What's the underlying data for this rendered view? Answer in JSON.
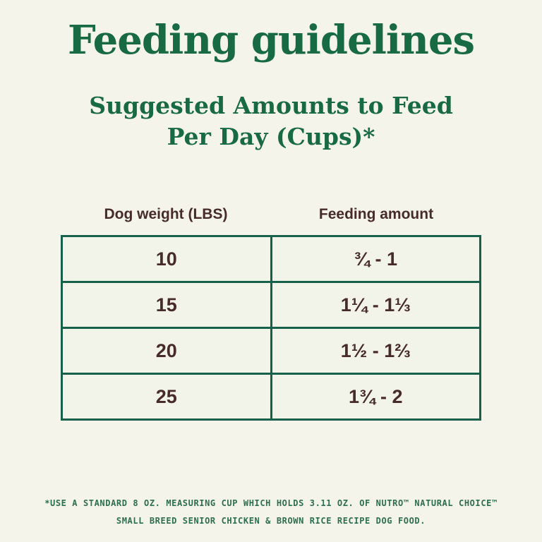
{
  "page": {
    "title": "Feeding guidelines",
    "subtitle_line1": "Suggested Amounts to Feed",
    "subtitle_line2": "Per Day (Cups)*"
  },
  "table": {
    "headers": [
      "Dog weight (LBS)",
      "Feeding amount"
    ],
    "rows": [
      {
        "weight": "10",
        "amount": "¾ - 1"
      },
      {
        "weight": "15",
        "amount": "1¼ - 1⅓"
      },
      {
        "weight": "20",
        "amount": "1½ - 1⅔"
      },
      {
        "weight": "25",
        "amount": "1¾ - 2"
      }
    ]
  },
  "footnote": {
    "line1": "*USE A STANDARD 8 OZ. MEASURING CUP WHICH HOLDS 3.11 OZ. OF NUTRO™ NATURAL CHOICE™",
    "line2": "SMALL BREED SENIOR CHICKEN & BROWN RICE RECIPE DOG FOOD."
  },
  "colors": {
    "background": "#f5f4ea",
    "title_green": "#186a42",
    "border_green": "#17604a",
    "text_brown": "#462b28",
    "footnote_green": "#2d6e4f"
  }
}
